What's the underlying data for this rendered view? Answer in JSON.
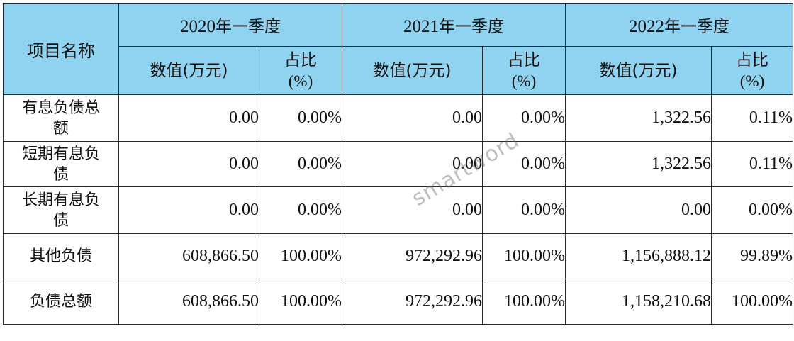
{
  "table": {
    "name_header": "项目名称",
    "periods": [
      {
        "year": "2020",
        "suffix": "年一季度"
      },
      {
        "year": "2021",
        "suffix": "年一季度"
      },
      {
        "year": "2022",
        "suffix": "年一季度"
      }
    ],
    "value_header": "数值(万元)",
    "ratio_header_line1": "占比",
    "ratio_header_line2": "(%)",
    "rows": [
      {
        "name_line1": "有息负债总",
        "name_line2": "额",
        "cells": [
          "0.00",
          "0.00%",
          "0.00",
          "0.00%",
          "1,322.56",
          "0.11%"
        ]
      },
      {
        "name_line1": "短期有息负",
        "name_line2": "债",
        "cells": [
          "0.00",
          "0.00%",
          "0.00",
          "0.00%",
          "1,322.56",
          "0.11%"
        ]
      },
      {
        "name_line1": "长期有息负",
        "name_line2": "债",
        "cells": [
          "0.00",
          "0.00%",
          "0.00",
          "0.00%",
          "0.00",
          "0.00%"
        ]
      },
      {
        "name_line1": "其他负债",
        "name_line2": "",
        "cells": [
          "608,866.50",
          "100.00%",
          "972,292.96",
          "100.00%",
          "1,156,888.12",
          "99.89%"
        ]
      },
      {
        "name_line1": "负债总额",
        "name_line2": "",
        "cells": [
          "608,866.50",
          "100.00%",
          "972,292.96",
          "100.00%",
          "1,158,210.68",
          "100.00%"
        ]
      }
    ]
  },
  "watermark": "smartword"
}
